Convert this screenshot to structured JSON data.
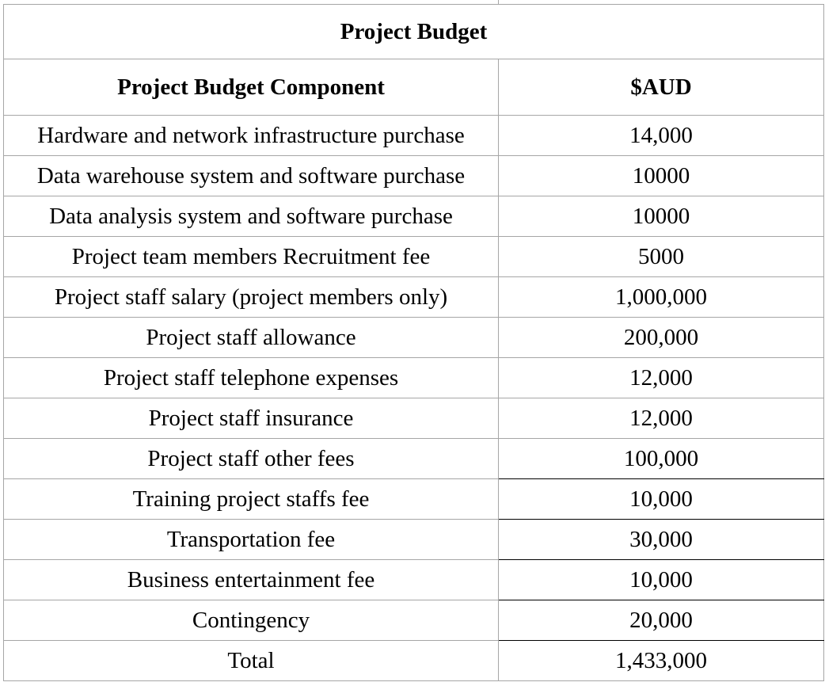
{
  "table": {
    "title": "Project Budget",
    "headers": {
      "component": "Project Budget Component",
      "amount": "$AUD"
    },
    "rows": [
      {
        "component": "Hardware and network infrastructure purchase",
        "amount": "14,000"
      },
      {
        "component": "Data warehouse system and software purchase",
        "amount": "10000"
      },
      {
        "component": "Data analysis system and software purchase",
        "amount": "10000"
      },
      {
        "component": "Project team members Recruitment fee",
        "amount": "5000"
      },
      {
        "component": "Project staff salary (project members only)",
        "amount": "1,000,000"
      },
      {
        "component": "Project staff allowance",
        "amount": "200,000"
      },
      {
        "component": "Project staff telephone expenses",
        "amount": "12,000"
      },
      {
        "component": "Project staff insurance",
        "amount": "12,000"
      },
      {
        "component": "Project staff other fees",
        "amount": "100,000"
      },
      {
        "component": "Training project staffs fee",
        "amount": "10,000"
      },
      {
        "component": "Transportation fee",
        "amount": "30,000"
      },
      {
        "component": "Business entertainment fee",
        "amount": "10,000"
      },
      {
        "component": "Contingency",
        "amount": "20,000"
      },
      {
        "component": "Total",
        "amount": "1,433,000"
      }
    ]
  },
  "colors": {
    "border": "#a6a6a6",
    "text": "#000000",
    "background": "#ffffff"
  }
}
